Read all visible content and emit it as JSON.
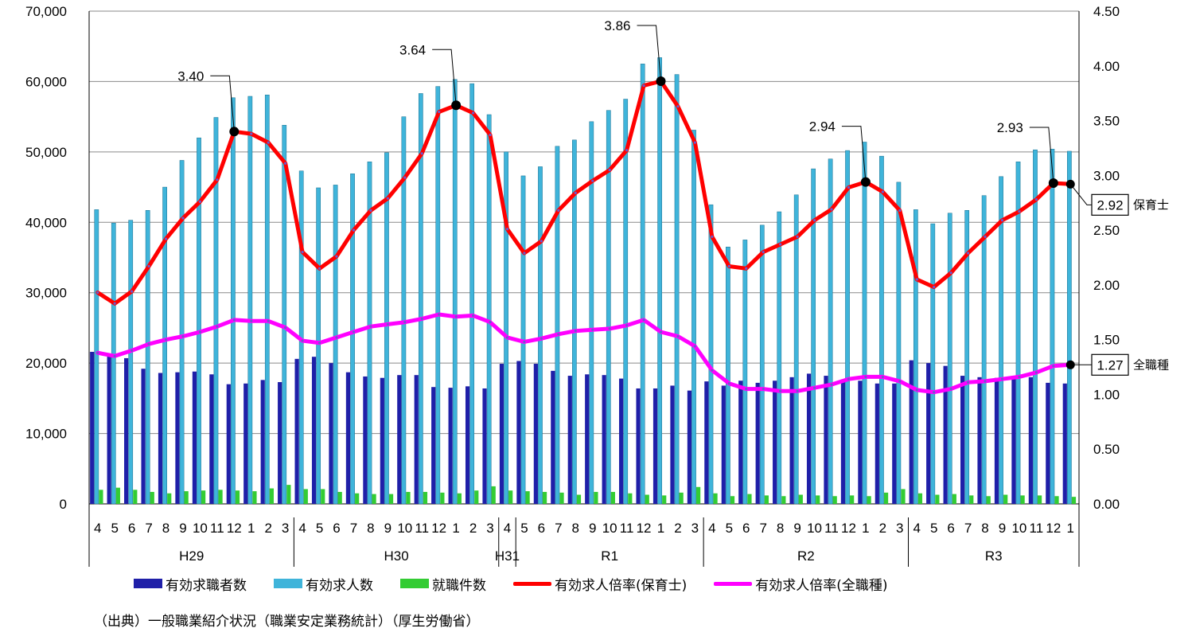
{
  "chart_data": {
    "type": "bar+line",
    "categories": [
      "4",
      "5",
      "6",
      "7",
      "8",
      "9",
      "10",
      "11",
      "12",
      "1",
      "2",
      "3",
      "4",
      "5",
      "6",
      "7",
      "8",
      "9",
      "10",
      "11",
      "12",
      "1",
      "2",
      "3",
      "4",
      "5",
      "6",
      "7",
      "8",
      "9",
      "10",
      "11",
      "12",
      "1",
      "2",
      "3",
      "4",
      "5",
      "6",
      "7",
      "8",
      "9",
      "10",
      "11",
      "12",
      "1",
      "2",
      "3",
      "4",
      "5",
      "6",
      "7",
      "8",
      "9",
      "10",
      "11",
      "12",
      "1"
    ],
    "groups": [
      {
        "label": "H29",
        "start": 0,
        "end": 11
      },
      {
        "label": "H30",
        "start": 12,
        "end": 23
      },
      {
        "label": "H31",
        "start": 24,
        "end": 24
      },
      {
        "label": "R1",
        "start": 25,
        "end": 35
      },
      {
        "label": "R2",
        "start": 36,
        "end": 47
      },
      {
        "label": "R3",
        "start": 48,
        "end": 57
      }
    ],
    "y_left": {
      "min": 0,
      "max": 70000,
      "ticks": [
        "0",
        "10,000",
        "20,000",
        "30,000",
        "40,000",
        "50,000",
        "60,000",
        "70,000"
      ]
    },
    "y_right": {
      "min": 0,
      "max": 4.5,
      "ticks": [
        "0.00",
        "0.50",
        "1.00",
        "1.50",
        "2.00",
        "2.50",
        "3.00",
        "3.50",
        "4.00",
        "4.50"
      ]
    },
    "series": [
      {
        "name": "有効求職者数",
        "axis": "left",
        "kind": "bar",
        "color": "#1f1fa8",
        "values": [
          21600,
          21000,
          20700,
          19200,
          18600,
          18700,
          18800,
          18400,
          17000,
          17100,
          17600,
          17300,
          20600,
          20900,
          20000,
          18700,
          18100,
          17900,
          18300,
          18300,
          16600,
          16500,
          16700,
          16400,
          19900,
          20300,
          19900,
          18900,
          18200,
          18400,
          18300,
          17800,
          16400,
          16400,
          16800,
          16100,
          17400,
          16800,
          17500,
          17200,
          17500,
          18000,
          18500,
          18200,
          17700,
          17500,
          17100,
          17100,
          20400,
          20000,
          19600,
          18200,
          18000,
          17900,
          18200,
          18000,
          17200,
          17100
        ]
      },
      {
        "name": "有効求人数",
        "axis": "left",
        "kind": "bar",
        "color": "#3fb4da",
        "values": [
          41800,
          39900,
          40300,
          41700,
          45000,
          48800,
          52000,
          54900,
          57700,
          57900,
          58100,
          53800,
          47300,
          44900,
          45300,
          46900,
          48600,
          49900,
          55000,
          58300,
          59300,
          60300,
          59700,
          55300,
          50000,
          46600,
          47900,
          50800,
          51700,
          54300,
          55900,
          57500,
          62500,
          63400,
          61000,
          53100,
          42500,
          36500,
          37500,
          39600,
          41500,
          43900,
          47600,
          49000,
          50200,
          51400,
          49400,
          45700,
          41800,
          39800,
          41300,
          41700,
          43800,
          46500,
          48600,
          50300,
          50400,
          50100
        ]
      },
      {
        "name": "就職件数",
        "axis": "left",
        "kind": "bar",
        "color": "#33cc33",
        "values": [
          2000,
          2300,
          2000,
          1700,
          1500,
          1800,
          1900,
          2000,
          1900,
          1800,
          2200,
          2700,
          2100,
          2100,
          1700,
          1500,
          1400,
          1400,
          1700,
          1700,
          1600,
          1500,
          1900,
          2500,
          1900,
          1800,
          1700,
          1600,
          1300,
          1700,
          1700,
          1500,
          1300,
          1200,
          1600,
          2400,
          1500,
          1100,
          1400,
          1200,
          1100,
          1300,
          1200,
          1100,
          1200,
          1100,
          1600,
          2100,
          1500,
          1300,
          1400,
          1200,
          1100,
          1300,
          1200,
          1200,
          1100,
          1000
        ]
      },
      {
        "name": "有効求人倍率(保育士)",
        "axis": "right",
        "kind": "line",
        "color": "#ff0000",
        "values": [
          1.93,
          1.83,
          1.94,
          2.17,
          2.42,
          2.61,
          2.76,
          2.96,
          3.4,
          3.38,
          3.3,
          3.11,
          2.3,
          2.15,
          2.26,
          2.5,
          2.68,
          2.79,
          2.98,
          3.2,
          3.58,
          3.64,
          3.57,
          3.37,
          2.51,
          2.29,
          2.4,
          2.68,
          2.84,
          2.95,
          3.05,
          3.23,
          3.82,
          3.86,
          3.63,
          3.3,
          2.44,
          2.17,
          2.15,
          2.3,
          2.37,
          2.44,
          2.59,
          2.69,
          2.89,
          2.94,
          2.85,
          2.68,
          2.05,
          1.98,
          2.11,
          2.29,
          2.44,
          2.59,
          2.67,
          2.78,
          2.93,
          2.92
        ]
      },
      {
        "name": "有効求人倍率(全職種)",
        "axis": "right",
        "kind": "line",
        "color": "#ff00ff",
        "values": [
          1.38,
          1.35,
          1.4,
          1.46,
          1.5,
          1.53,
          1.57,
          1.62,
          1.68,
          1.67,
          1.67,
          1.61,
          1.49,
          1.47,
          1.52,
          1.57,
          1.62,
          1.64,
          1.66,
          1.69,
          1.73,
          1.71,
          1.72,
          1.66,
          1.52,
          1.48,
          1.51,
          1.55,
          1.58,
          1.59,
          1.6,
          1.63,
          1.68,
          1.57,
          1.53,
          1.44,
          1.22,
          1.1,
          1.05,
          1.05,
          1.03,
          1.03,
          1.06,
          1.09,
          1.14,
          1.16,
          1.16,
          1.12,
          1.04,
          1.02,
          1.05,
          1.11,
          1.12,
          1.14,
          1.16,
          1.2,
          1.26,
          1.27
        ]
      }
    ],
    "annotations": [
      {
        "series": "有効求人倍率(保育士)",
        "index": 8,
        "text": "3.40"
      },
      {
        "series": "有効求人倍率(保育士)",
        "index": 21,
        "text": "3.64"
      },
      {
        "series": "有効求人倍率(保育士)",
        "index": 33,
        "text": "3.86"
      },
      {
        "series": "有効求人倍率(保育士)",
        "index": 45,
        "text": "2.94"
      },
      {
        "series": "有効求人倍率(保育士)",
        "index": 56,
        "text": "2.93"
      }
    ],
    "end_labels": [
      {
        "series": "有効求人倍率(保育士)",
        "value_text": "2.92",
        "name": "保育士"
      },
      {
        "series": "有効求人倍率(全職種)",
        "value_text": "1.27",
        "name": "全職種"
      }
    ],
    "grid": "horizontal",
    "legend": "bottom"
  },
  "legend_items": [
    {
      "label": "有効求職者数",
      "color": "#1f1fa8"
    },
    {
      "label": "有効求人数",
      "color": "#3fb4da"
    },
    {
      "label": "就職件数",
      "color": "#33cc33"
    },
    {
      "label": "有効求人倍率(保育士)",
      "color": "#ff0000"
    },
    {
      "label": "有効求人倍率(全職種)",
      "color": "#ff00ff"
    }
  ],
  "source_text": "（出典）一般職業紹介状況（職業安定業務統計）（厚生労働省）"
}
